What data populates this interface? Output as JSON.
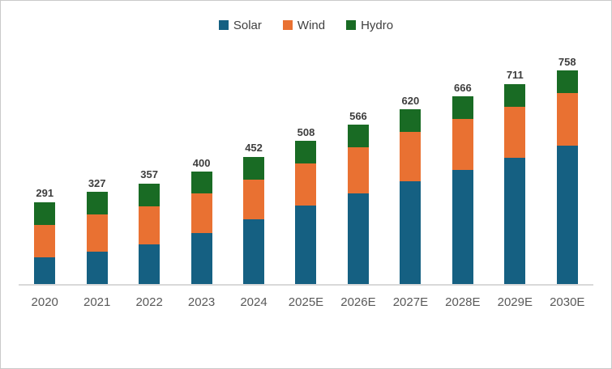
{
  "chart_data": {
    "type": "bar",
    "stacked": true,
    "title": "",
    "categories": [
      "2020",
      "2021",
      "2022",
      "2023",
      "2024",
      "2025E",
      "2026E",
      "2027E",
      "2028E",
      "2029E",
      "2030E"
    ],
    "series": [
      {
        "name": "Solar",
        "color": "#156082",
        "values": [
          95,
          116,
          141,
          182,
          231,
          280,
          322,
          366,
          405,
          448,
          490
        ]
      },
      {
        "name": "Wind",
        "color": "#E97132",
        "values": [
          116,
          130,
          136,
          139,
          140,
          149,
          164,
          174,
          180,
          182,
          187
        ]
      },
      {
        "name": "Hydro",
        "color": "#196B24",
        "values": [
          80,
          81,
          80,
          79,
          81,
          79,
          80,
          80,
          81,
          81,
          81
        ]
      }
    ],
    "totals": [
      291,
      327,
      357,
      400,
      452,
      508,
      566,
      620,
      666,
      711,
      758
    ],
    "stack_order": "bottom-to-top",
    "legend_position": "top",
    "gridlines": false,
    "y_axis_visible": false,
    "data_labels": "totals-above-bars",
    "axis_line_color": "#D9D9D9",
    "x_label_color": "#595959",
    "data_label_color": "#3D3D3D",
    "legend_text_color": "#404040",
    "background_color": "#FFFFFF"
  }
}
